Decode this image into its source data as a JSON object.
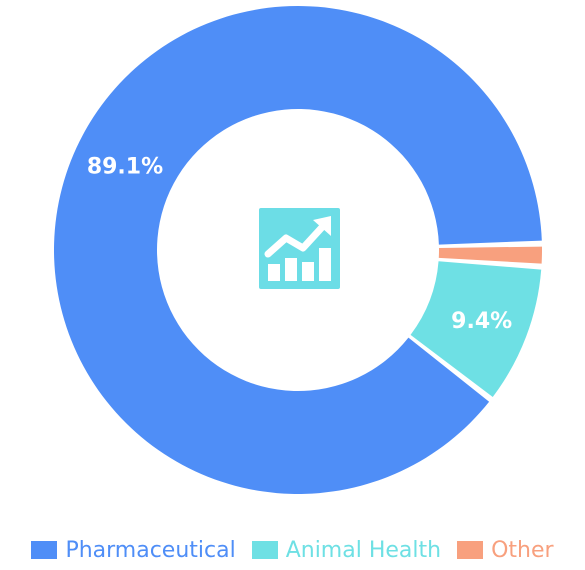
{
  "chart_data": {
    "type": "pie",
    "variant": "donut",
    "categories": [
      "Pharmaceutical",
      "Animal Health",
      "Other"
    ],
    "values": [
      89.1,
      9.4,
      1.5
    ],
    "data_labels": [
      "89.1%",
      "9.4%",
      ""
    ],
    "colors": [
      "#4F8EF7",
      "#6EE0E4",
      "#F8A07E"
    ],
    "legend_position": "bottom",
    "center_icon": "chart-growth-icon",
    "center_icon_color": "#6CDDE6"
  }
}
